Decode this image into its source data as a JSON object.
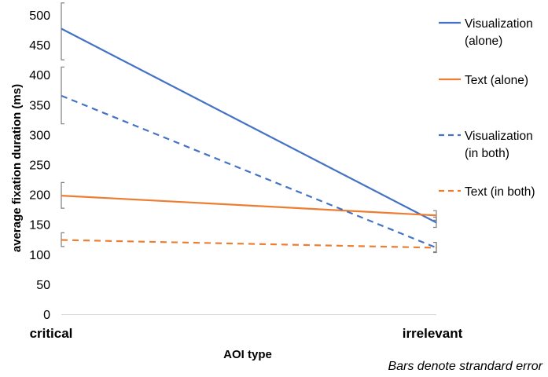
{
  "chart_data": {
    "type": "line",
    "title": "",
    "xlabel": "AOI type",
    "ylabel": "average fixation duration (ms)",
    "ylim": [
      0,
      500
    ],
    "yticks": [
      0,
      50,
      100,
      150,
      200,
      250,
      300,
      350,
      400,
      450,
      500
    ],
    "categories": [
      "critical",
      "irrelevant"
    ],
    "grid": false,
    "legend_position": "right",
    "footnote": "Bars denote strandard error",
    "series": [
      {
        "name": "Visualization (alone)",
        "legend_lines": [
          "Visualization",
          "(alone)"
        ],
        "color": "#4472C4",
        "dash": "solid",
        "values": [
          477,
          153
        ],
        "error": [
          [
            425,
            520
          ],
          [
            145,
            162
          ]
        ]
      },
      {
        "name": "Text (alone)",
        "legend_lines": [
          "Text (alone)"
        ],
        "color": "#ED7D31",
        "dash": "solid",
        "values": [
          198,
          165
        ],
        "error": [
          [
            177,
            220
          ],
          [
            157,
            173
          ]
        ]
      },
      {
        "name": "Visualization (in both)",
        "legend_lines": [
          "Visualization",
          "(in both)"
        ],
        "color": "#4472C4",
        "dash": "dashed",
        "values": [
          365,
          111
        ],
        "error": [
          [
            318,
            413
          ],
          [
            103,
            120
          ]
        ]
      },
      {
        "name": "Text (in both)",
        "legend_lines": [
          "Text (in both)"
        ],
        "color": "#ED7D31",
        "dash": "dashed",
        "values": [
          124,
          111
        ],
        "error": [
          [
            113,
            136
          ],
          [
            104,
            120
          ]
        ]
      }
    ]
  }
}
